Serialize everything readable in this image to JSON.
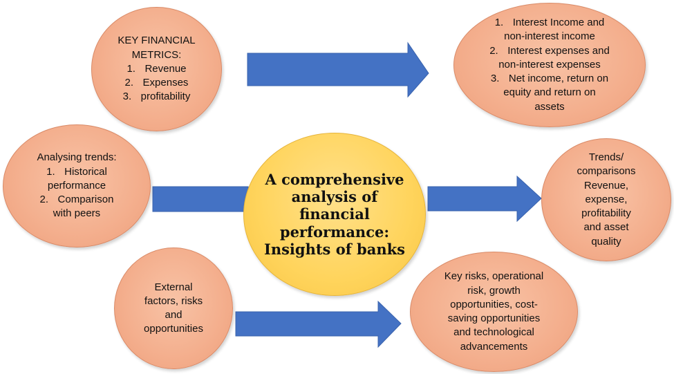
{
  "center": {
    "title": "A comprehensive analysis of financial performance: Insights of banks"
  },
  "key_metrics": {
    "heading_line1": "KEY FINANCIAL",
    "heading_line2": "METRICS:",
    "items": [
      {
        "num": "1.",
        "text": "Revenue"
      },
      {
        "num": "2.",
        "text": "Expenses"
      },
      {
        "num": "3.",
        "text": "profitability"
      }
    ]
  },
  "income_details": {
    "items": [
      {
        "num": "1.",
        "line1": "Interest Income and",
        "line2": "non-interest income"
      },
      {
        "num": "2.",
        "line1": "Interest expenses and",
        "line2": "non-interest expenses"
      },
      {
        "num": "3.",
        "line1": "Net income, return on",
        "line2": "equity and return on",
        "line3": "assets"
      }
    ]
  },
  "trends": {
    "heading": "Analysing trends:",
    "items": [
      {
        "num": "1.",
        "line1": "Historical",
        "line2": "performance"
      },
      {
        "num": "2.",
        "line1": "Comparison",
        "line2": "with peers"
      }
    ]
  },
  "comparisons": {
    "lines": [
      "Trends/",
      "comparisons",
      "Revenue,",
      "expense,",
      "profitability",
      "and asset",
      "quality"
    ]
  },
  "external": {
    "lines": [
      "External",
      "factors, risks",
      "and",
      "opportunities"
    ]
  },
  "risks": {
    "lines": [
      "Key risks, operational",
      "risk, growth",
      "opportunities, cost-",
      "saving opportunities",
      "and technological",
      "advancements"
    ]
  },
  "colors": {
    "ellipse_fill": "#f4b08f",
    "center_fill": "#ffd45c",
    "arrow_fill": "#4472c4"
  }
}
